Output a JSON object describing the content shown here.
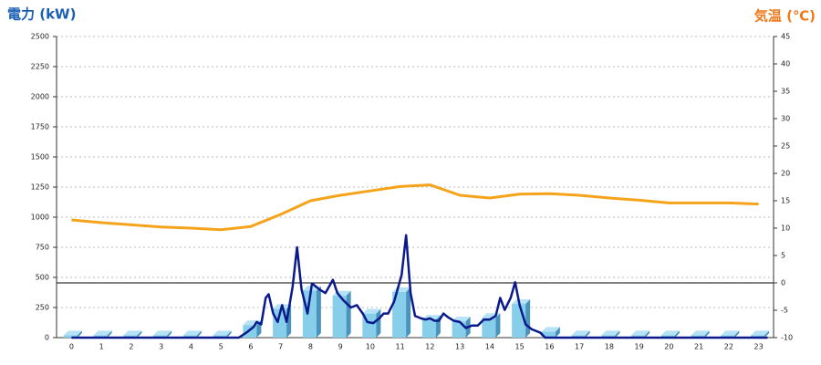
{
  "chart_data": {
    "type": "bar_line",
    "title": "電力 (kW)",
    "y2_title": "気温 (℃)",
    "categories": [
      "0",
      "1",
      "2",
      "3",
      "4",
      "5",
      "6",
      "7",
      "8",
      "9",
      "10",
      "11",
      "12",
      "13",
      "14",
      "15",
      "16",
      "17",
      "18",
      "19",
      "20",
      "21",
      "22",
      "23"
    ],
    "ylim": [
      0,
      2500
    ],
    "yticks": [
      0,
      250,
      500,
      750,
      1000,
      1250,
      1500,
      1750,
      2000,
      2250,
      2500
    ],
    "y2lim": [
      -10,
      45
    ],
    "y2ticks": [
      -10,
      -5,
      0,
      5,
      10,
      15,
      20,
      25,
      30,
      35,
      40,
      45
    ],
    "grid": true,
    "y2_zero_line": true,
    "series": [
      {
        "type": "bar",
        "color": "#87ceeb",
        "values": [
          20,
          20,
          20,
          20,
          20,
          20,
          105,
          240,
          390,
          350,
          200,
          380,
          150,
          135,
          165,
          280,
          50,
          20,
          20,
          20,
          20,
          20,
          20,
          20
        ]
      },
      {
        "type": "line",
        "color": "#0a1a8c",
        "x": [
          0,
          5.6,
          5.9,
          6.1,
          6.2,
          6.35,
          6.5,
          6.6,
          6.75,
          6.9,
          7.05,
          7.2,
          7.4,
          7.55,
          7.7,
          7.9,
          8.05,
          8.3,
          8.5,
          8.75,
          8.9,
          9.1,
          9.35,
          9.55,
          9.75,
          9.9,
          10.1,
          10.3,
          10.45,
          10.6,
          10.8,
          11.05,
          11.2,
          11.35,
          11.5,
          11.7,
          11.85,
          12.0,
          12.15,
          12.3,
          12.45,
          12.6,
          12.8,
          13.0,
          13.2,
          13.4,
          13.6,
          13.8,
          14.0,
          14.2,
          14.35,
          14.5,
          14.7,
          14.85,
          15.0,
          15.2,
          15.4,
          15.7,
          15.85,
          23.3
        ],
        "values": [
          0,
          0,
          50,
          90,
          130,
          110,
          330,
          360,
          200,
          130,
          270,
          130,
          420,
          750,
          400,
          200,
          450,
          400,
          370,
          480,
          370,
          310,
          250,
          270,
          200,
          130,
          120,
          160,
          200,
          200,
          300,
          520,
          850,
          370,
          180,
          160,
          150,
          160,
          140,
          140,
          200,
          170,
          140,
          130,
          80,
          100,
          100,
          150,
          150,
          180,
          330,
          230,
          330,
          460,
          270,
          110,
          70,
          40,
          0,
          0
        ]
      },
      {
        "type": "line",
        "axis": "y2",
        "color": "#f5a31a",
        "values": [
          11.5,
          11.0,
          10.6,
          10.2,
          10.0,
          9.7,
          10.3,
          12.5,
          15.0,
          16.0,
          16.8,
          17.6,
          17.9,
          16.0,
          15.5,
          16.2,
          16.3,
          16.0,
          15.5,
          15.1,
          14.6,
          14.6,
          14.6,
          14.4
        ]
      }
    ]
  }
}
